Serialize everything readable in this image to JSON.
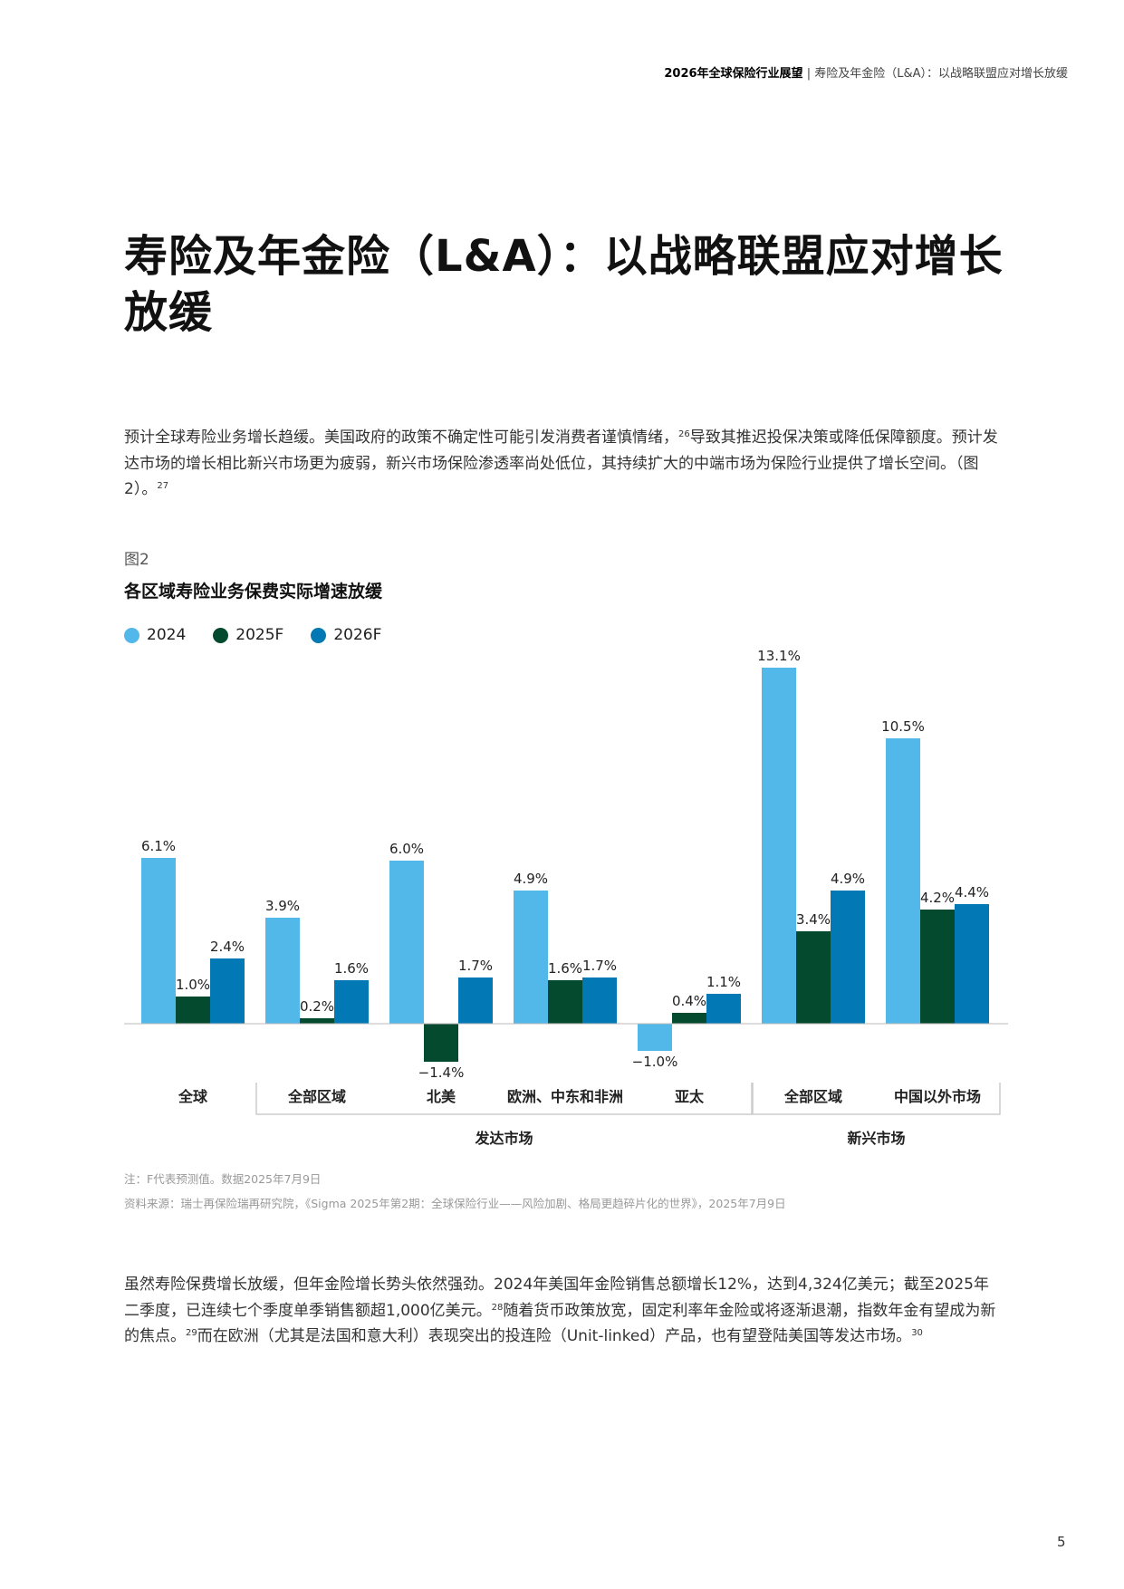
{
  "header": {
    "report": "2026年全球保险行业展望",
    "separator": " | ",
    "section": "寿险及年金险（L&A）：以战略联盟应对增长放缓"
  },
  "title": "寿险及年金险（L&A）：以战略联盟应对增长放缓",
  "para1": {
    "t1": "预计全球寿险业务增长趋缓。美国政府的政策不确定性可能引发消费者谨慎情绪，",
    "s1": "26",
    "t2": "导致其推迟投保决策或降低保障额度。预计发达市场的增长相比新兴市场更为疲弱，新兴市场保险渗透率尚处低位，其持续扩大的中端市场为保险行业提供了增长空间。（图2）。",
    "s2": "27"
  },
  "figure_label": "图2",
  "chart_data": {
    "type": "bar",
    "title": "各区域寿险业务保费实际增速放缓",
    "categories": [
      "全球",
      "全部区域",
      "北美",
      "欧洲、中东和非洲",
      "亚太",
      "全部区域",
      "中国以外市场"
    ],
    "groups": [
      {
        "label": "发达市场",
        "from": 1,
        "to": 4
      },
      {
        "label": "新兴市场",
        "from": 5,
        "to": 6
      }
    ],
    "series": [
      {
        "name": "2024",
        "color": "#52b8e9",
        "values": [
          6.1,
          3.9,
          6.0,
          4.9,
          -1.0,
          13.1,
          10.5
        ]
      },
      {
        "name": "2025F",
        "color": "#044a2e",
        "values": [
          1.0,
          0.2,
          -1.4,
          1.6,
          0.4,
          3.4,
          4.2
        ]
      },
      {
        "name": "2026F",
        "color": "#0279b4",
        "values": [
          2.4,
          1.6,
          1.7,
          1.7,
          1.1,
          4.9,
          4.4
        ]
      }
    ],
    "value_format": "%",
    "legend": "top-left",
    "grid": false
  },
  "notes": {
    "note": "注：F代表预测值。数据2025年7月9日",
    "source": "资料来源：瑞士再保险瑞再研究院，《Sigma 2025年第2期：全球保险行业——风险加剧、格局更趋碎片化的世界》，2025年7月9日"
  },
  "para2": {
    "t1": "虽然寿险保费增长放缓，但年金险增长势头依然强劲。2024年美国年金险销售总额增长12%，达到4,324亿美元；截至2025年二季度，已连续七个季度单季销售额超1,000亿美元。",
    "s1": "28",
    "t2": "随着货币政策放宽，固定利率年金险或将逐渐退潮，指数年金有望成为新的焦点。",
    "s2": "29",
    "t3": "而在欧洲（尤其是法国和意大利）表现突出的投连险（Unit-linked）产品，也有望登陆美国等发达市场。",
    "s3": "30"
  },
  "page_number": "5"
}
